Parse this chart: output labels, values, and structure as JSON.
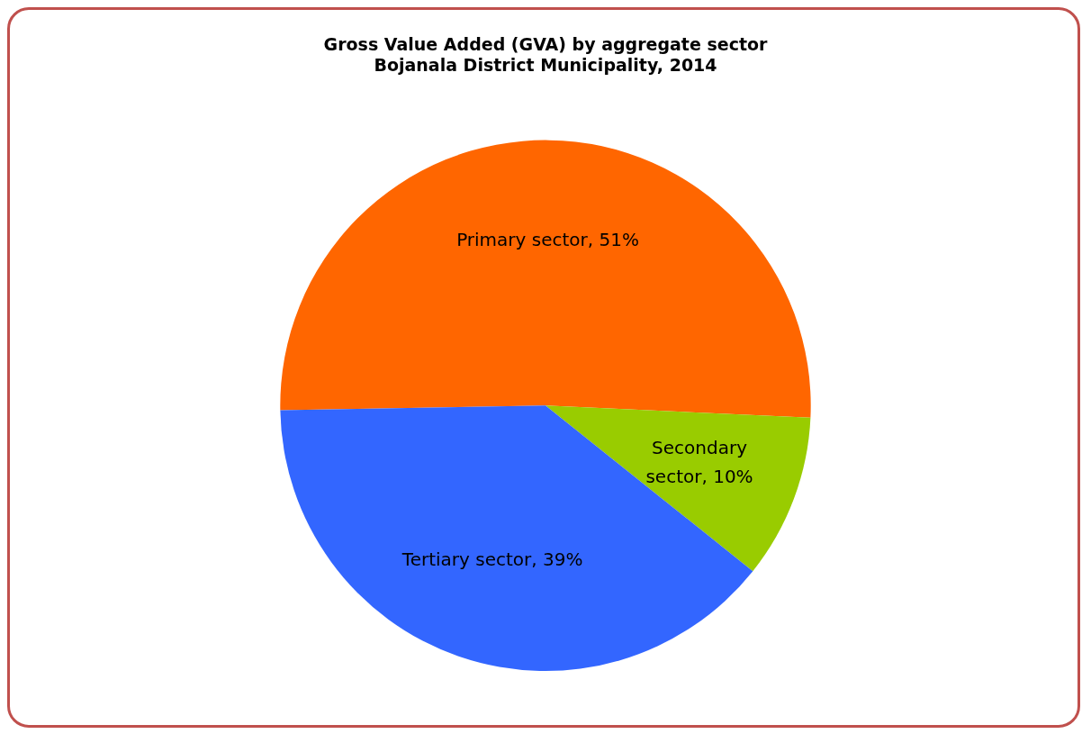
{
  "chart_data": {
    "type": "pie",
    "title": "Gross Value Added (GVA) by aggregate sector\nBojanala District Municipality, 2014",
    "categories": [
      "Primary sector",
      "Secondary sector",
      "Tertiary sector"
    ],
    "values": [
      51,
      10,
      39
    ],
    "colors": [
      "#ff6600",
      "#99cc00",
      "#3366ff"
    ],
    "value_labels": [
      ", 51%",
      ", 10%",
      ", 39%"
    ],
    "legend": false
  }
}
